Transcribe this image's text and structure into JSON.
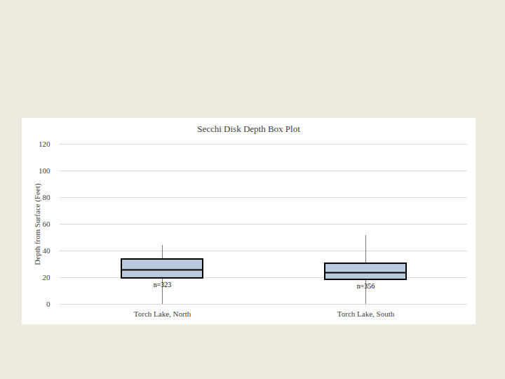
{
  "chart_data": {
    "type": "box",
    "title": "Secchi Disk Depth Box Plot",
    "y_label": "Depth from Surface (Feet)",
    "categories": [
      "Torch Lake, North",
      "Torch Lake, South"
    ],
    "min": [
      0,
      0
    ],
    "q1": [
      19.5,
      18.4
    ],
    "median": [
      25.8,
      23.7
    ],
    "q3": [
      33.7,
      30.5
    ],
    "max": [
      44.2,
      51.6
    ],
    "annotations": [
      "n=323",
      "n=356"
    ],
    "color": "#b9c9de",
    "ylim": [
      0,
      120
    ],
    "yticks": [
      0,
      20,
      40,
      60,
      80,
      100,
      120
    ],
    "grid": true
  }
}
